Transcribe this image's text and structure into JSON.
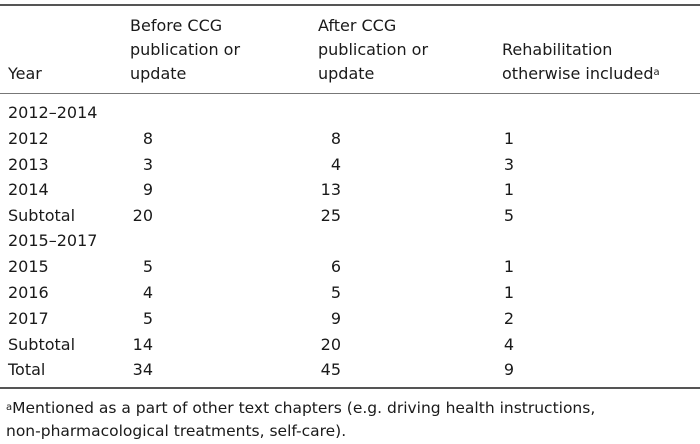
{
  "table": {
    "headers": {
      "year": "Year",
      "before": [
        "Before CCG",
        "publication or",
        "update"
      ],
      "after": [
        "After CCG",
        "publication or",
        "update"
      ],
      "rehab": [
        "Rehabilitation",
        "otherwise included"
      ],
      "rehab_sup": "a"
    },
    "rows": [
      {
        "year": "2012–2014",
        "before": "",
        "after": "",
        "rehab": ""
      },
      {
        "year": "2012",
        "before": "8",
        "after": "8",
        "rehab": "1"
      },
      {
        "year": "2013",
        "before": "3",
        "after": "4",
        "rehab": "3"
      },
      {
        "year": "2014",
        "before": "9",
        "after": "13",
        "rehab": "1"
      },
      {
        "year": "Subtotal",
        "before": "20",
        "after": "25",
        "rehab": "5"
      },
      {
        "year": "2015–2017",
        "before": "",
        "after": "",
        "rehab": ""
      },
      {
        "year": "2015",
        "before": "5",
        "after": "6",
        "rehab": "1"
      },
      {
        "year": "2016",
        "before": "4",
        "after": "5",
        "rehab": "1"
      },
      {
        "year": "2017",
        "before": "5",
        "after": "9",
        "rehab": "2"
      },
      {
        "year": "Subtotal",
        "before": "14",
        "after": "20",
        "rehab": "4"
      },
      {
        "year": "Total",
        "before": "34",
        "after": "45",
        "rehab": "9"
      }
    ]
  },
  "footnote": {
    "sup": "a",
    "lines": [
      "Mentioned as a part of other text chapters (e.g. driving health instructions,",
      "non-pharmacological treatments, self-care)."
    ]
  }
}
